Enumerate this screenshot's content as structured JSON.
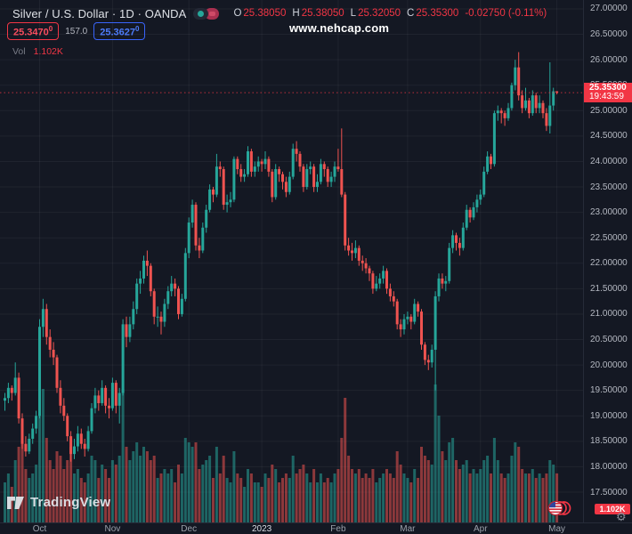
{
  "header": {
    "title": "Silver / U.S. Dollar · 1D · OANDA",
    "ohlc": {
      "o_label": "O",
      "o": "25.38050",
      "h_label": "H",
      "h": "25.38050",
      "l_label": "L",
      "l": "25.32050",
      "c_label": "C",
      "c": "25.35300",
      "change": "-0.02750 (-0.11%)"
    },
    "bid": {
      "main": "25.3470",
      "sup": "0"
    },
    "spread": "157.0",
    "ask": {
      "main": "25.3627",
      "sup": "0"
    },
    "vol_label": "Vol",
    "vol_value": "1.102K"
  },
  "watermark": "www.nehcap.com",
  "logo_text": "TradingView",
  "colors": {
    "background": "#141823",
    "up": "#26a69a",
    "down": "#ef5350",
    "up_volume": "rgba(38,166,154,0.55)",
    "down_volume": "rgba(239,83,80,0.55)",
    "accent_red": "#f23645",
    "accent_blue": "#2962ff",
    "grid": "rgba(255,255,255,0.05)",
    "axis_text": "#b4b8c1"
  },
  "chart_data": {
    "type": "candlestick",
    "symbol": "Silver / U.S. Dollar",
    "interval": "1D",
    "exchange": "OANDA",
    "title": "Silver / U.S. Dollar · 1D · OANDA",
    "last_price": "25.35300",
    "last_price_value": 25.353,
    "countdown": "19:43:59",
    "last_volume": "1.102K",
    "ylim": [
      16.93,
      27.17
    ],
    "xrange": [
      "Sep 2022",
      "May 2023"
    ],
    "grid": true,
    "price_axis_labels": [
      "27.00000",
      "26.50000",
      "26.00000",
      "25.50000",
      "25.00000",
      "24.50000",
      "24.00000",
      "23.50000",
      "23.00000",
      "22.50000",
      "22.00000",
      "21.50000",
      "21.00000",
      "20.50000",
      "20.00000",
      "19.50000",
      "19.00000",
      "18.50000",
      "18.00000",
      "17.50000"
    ],
    "time_axis": [
      {
        "label": "Oct",
        "index": 10,
        "major": false
      },
      {
        "label": "Nov",
        "index": 31,
        "major": false
      },
      {
        "label": "Dec",
        "index": 53,
        "major": false
      },
      {
        "label": "2023",
        "index": 74,
        "major": true
      },
      {
        "label": "Feb",
        "index": 96,
        "major": false
      },
      {
        "label": "Mar",
        "index": 116,
        "major": false
      },
      {
        "label": "Apr",
        "index": 137,
        "major": false
      },
      {
        "label": "May",
        "index": 159,
        "major": false
      }
    ],
    "volume_unit": "K",
    "candles": [
      [
        19.3,
        19.45,
        19.1,
        19.35,
        0.9
      ],
      [
        19.35,
        19.65,
        19.25,
        19.55,
        1.1
      ],
      [
        19.55,
        19.6,
        19.3,
        19.45,
        0.8
      ],
      [
        19.45,
        20.05,
        19.4,
        19.75,
        1.4
      ],
      [
        19.75,
        19.85,
        18.85,
        18.95,
        1.7
      ],
      [
        18.95,
        19.05,
        18.35,
        18.45,
        1.8
      ],
      [
        18.45,
        18.6,
        18.2,
        18.3,
        1.2
      ],
      [
        18.3,
        18.65,
        18.25,
        18.55,
        1.0
      ],
      [
        18.55,
        18.85,
        18.45,
        18.75,
        1.1
      ],
      [
        18.75,
        19.1,
        18.65,
        19.0,
        1.3
      ],
      [
        19.0,
        20.9,
        18.95,
        20.75,
        2.8
      ],
      [
        20.75,
        21.3,
        20.55,
        21.1,
        3.0
      ],
      [
        21.1,
        21.2,
        20.4,
        20.55,
        1.9
      ],
      [
        20.55,
        20.7,
        20.15,
        20.3,
        1.4
      ],
      [
        20.3,
        20.45,
        20.0,
        20.15,
        1.2
      ],
      [
        20.15,
        20.2,
        19.45,
        19.55,
        1.6
      ],
      [
        19.55,
        19.7,
        19.05,
        19.2,
        1.5
      ],
      [
        19.2,
        19.35,
        18.9,
        19.0,
        1.2
      ],
      [
        19.0,
        19.05,
        18.5,
        18.6,
        1.4
      ],
      [
        18.6,
        18.7,
        18.1,
        18.25,
        1.7
      ],
      [
        18.25,
        18.55,
        18.15,
        18.4,
        1.1
      ],
      [
        18.4,
        18.8,
        18.3,
        18.65,
        1.2
      ],
      [
        18.65,
        18.75,
        18.35,
        18.45,
        1.0
      ],
      [
        18.45,
        18.55,
        18.2,
        18.35,
        0.9
      ],
      [
        18.35,
        18.8,
        18.3,
        18.7,
        1.1
      ],
      [
        18.7,
        19.25,
        18.65,
        19.15,
        1.5
      ],
      [
        19.15,
        19.55,
        19.05,
        19.4,
        1.4
      ],
      [
        19.4,
        19.5,
        19.1,
        19.25,
        1.0
      ],
      [
        19.25,
        19.7,
        19.2,
        19.55,
        1.3
      ],
      [
        19.55,
        19.6,
        19.05,
        19.2,
        1.2
      ],
      [
        19.2,
        19.35,
        18.95,
        19.15,
        1.0
      ],
      [
        19.15,
        19.75,
        19.1,
        19.65,
        1.4
      ],
      [
        19.65,
        19.7,
        19.05,
        19.2,
        1.3
      ],
      [
        19.2,
        19.55,
        18.85,
        19.45,
        1.5
      ],
      [
        19.45,
        20.9,
        19.4,
        20.8,
        3.0
      ],
      [
        20.8,
        20.95,
        20.35,
        20.55,
        1.7
      ],
      [
        20.55,
        20.95,
        20.45,
        20.8,
        1.4
      ],
      [
        20.8,
        21.25,
        20.7,
        21.1,
        1.6
      ],
      [
        21.1,
        21.7,
        21.0,
        21.6,
        1.8
      ],
      [
        21.6,
        21.85,
        21.4,
        21.7,
        1.5
      ],
      [
        21.7,
        22.15,
        21.6,
        22.05,
        1.7
      ],
      [
        22.05,
        22.25,
        21.75,
        21.95,
        1.6
      ],
      [
        21.95,
        22.0,
        21.35,
        21.45,
        1.4
      ],
      [
        21.45,
        21.5,
        20.8,
        20.95,
        1.5
      ],
      [
        20.95,
        21.15,
        20.75,
        20.95,
        1.0
      ],
      [
        20.95,
        21.05,
        20.6,
        20.85,
        1.1
      ],
      [
        20.85,
        21.3,
        20.75,
        21.2,
        1.2
      ],
      [
        21.2,
        21.55,
        21.1,
        21.45,
        1.1
      ],
      [
        21.45,
        21.75,
        21.35,
        21.6,
        1.2
      ],
      [
        21.6,
        21.7,
        21.35,
        21.5,
        0.9
      ],
      [
        21.5,
        21.55,
        20.9,
        21.0,
        1.3
      ],
      [
        21.0,
        21.4,
        20.95,
        21.3,
        1.1
      ],
      [
        21.3,
        22.3,
        21.25,
        22.2,
        1.9
      ],
      [
        22.2,
        22.9,
        22.1,
        22.8,
        1.8
      ],
      [
        22.8,
        23.25,
        22.7,
        23.15,
        1.7
      ],
      [
        23.15,
        23.2,
        22.25,
        22.35,
        1.8
      ],
      [
        22.35,
        22.5,
        22.1,
        22.25,
        1.2
      ],
      [
        22.25,
        22.8,
        22.2,
        22.7,
        1.3
      ],
      [
        22.7,
        23.15,
        22.6,
        23.05,
        1.4
      ],
      [
        23.05,
        23.55,
        23.0,
        23.45,
        1.5
      ],
      [
        23.45,
        23.5,
        23.2,
        23.35,
        1.0
      ],
      [
        23.35,
        24.15,
        23.3,
        23.9,
        1.7
      ],
      [
        23.9,
        24.0,
        23.7,
        23.85,
        1.1
      ],
      [
        23.85,
        23.9,
        23.05,
        23.15,
        1.5
      ],
      [
        23.15,
        23.35,
        23.0,
        23.2,
        1.0
      ],
      [
        23.2,
        23.4,
        23.1,
        23.25,
        0.9
      ],
      [
        23.25,
        24.1,
        23.2,
        24.05,
        1.6
      ],
      [
        24.05,
        24.1,
        23.75,
        23.85,
        1.1
      ],
      [
        23.85,
        23.95,
        23.6,
        23.7,
        1.0
      ],
      [
        23.7,
        23.85,
        23.6,
        23.75,
        0.8
      ],
      [
        23.75,
        24.3,
        23.7,
        24.2,
        1.2
      ],
      [
        24.2,
        24.25,
        23.7,
        23.8,
        1.1
      ],
      [
        23.8,
        24.0,
        23.7,
        23.9,
        0.9
      ],
      [
        23.9,
        24.1,
        23.8,
        24.0,
        0.9
      ],
      [
        24.0,
        24.05,
        23.8,
        23.95,
        0.8
      ],
      [
        23.95,
        24.2,
        23.85,
        24.05,
        1.1
      ],
      [
        24.05,
        24.1,
        23.7,
        23.8,
        1.0
      ],
      [
        23.8,
        23.85,
        23.2,
        23.3,
        1.3
      ],
      [
        23.3,
        23.95,
        23.25,
        23.85,
        1.2
      ],
      [
        23.85,
        23.9,
        23.6,
        23.75,
        0.9
      ],
      [
        23.75,
        23.8,
        23.45,
        23.6,
        1.0
      ],
      [
        23.6,
        23.7,
        23.3,
        23.4,
        1.1
      ],
      [
        23.4,
        23.8,
        23.35,
        23.7,
        1.0
      ],
      [
        23.7,
        24.35,
        23.65,
        24.25,
        1.5
      ],
      [
        24.25,
        24.4,
        24.0,
        24.15,
        1.1
      ],
      [
        24.15,
        24.2,
        23.8,
        23.9,
        1.2
      ],
      [
        23.9,
        23.95,
        23.4,
        23.5,
        1.3
      ],
      [
        23.5,
        23.95,
        23.45,
        23.85,
        1.1
      ],
      [
        23.85,
        24.0,
        23.75,
        23.9,
        0.9
      ],
      [
        23.9,
        23.95,
        23.4,
        23.5,
        1.2
      ],
      [
        23.5,
        23.75,
        23.4,
        23.6,
        0.9
      ],
      [
        23.6,
        24.05,
        23.55,
        23.95,
        1.1
      ],
      [
        23.95,
        24.0,
        23.7,
        23.85,
        0.9
      ],
      [
        23.85,
        23.9,
        23.5,
        23.6,
        1.0
      ],
      [
        23.6,
        23.8,
        23.5,
        23.7,
        0.9
      ],
      [
        23.7,
        24.0,
        23.6,
        23.9,
        1.1
      ],
      [
        23.9,
        24.25,
        23.8,
        23.85,
        1.2
      ],
      [
        23.85,
        24.65,
        23.3,
        23.35,
        1.9
      ],
      [
        23.35,
        23.4,
        22.25,
        22.35,
        2.8
      ],
      [
        22.35,
        22.5,
        22.15,
        22.25,
        1.5
      ],
      [
        22.25,
        22.4,
        22.05,
        22.2,
        1.2
      ],
      [
        22.2,
        22.45,
        22.1,
        22.3,
        1.1
      ],
      [
        22.3,
        22.35,
        21.95,
        22.05,
        1.2
      ],
      [
        22.05,
        22.15,
        21.85,
        22.0,
        1.0
      ],
      [
        22.0,
        22.1,
        21.8,
        21.9,
        1.1
      ],
      [
        21.9,
        21.95,
        21.65,
        21.8,
        1.0
      ],
      [
        21.8,
        21.85,
        21.4,
        21.5,
        1.2
      ],
      [
        21.5,
        21.75,
        21.45,
        21.6,
        0.9
      ],
      [
        21.6,
        21.8,
        21.5,
        21.7,
        1.0
      ],
      [
        21.7,
        21.95,
        21.6,
        21.85,
        1.1
      ],
      [
        21.85,
        21.9,
        21.4,
        21.5,
        1.2
      ],
      [
        21.5,
        21.6,
        21.25,
        21.35,
        1.1
      ],
      [
        21.35,
        21.45,
        21.15,
        21.25,
        1.0
      ],
      [
        21.25,
        21.3,
        20.7,
        20.8,
        1.6
      ],
      [
        20.8,
        20.9,
        20.55,
        20.7,
        1.3
      ],
      [
        20.7,
        21.0,
        20.6,
        20.9,
        1.1
      ],
      [
        20.9,
        21.05,
        20.8,
        20.95,
        1.0
      ],
      [
        20.95,
        21.0,
        20.7,
        20.85,
        0.9
      ],
      [
        20.85,
        21.3,
        20.8,
        21.2,
        1.2
      ],
      [
        21.2,
        21.25,
        20.95,
        21.05,
        1.0
      ],
      [
        21.05,
        21.1,
        20.3,
        20.4,
        1.7
      ],
      [
        20.4,
        20.45,
        20.0,
        20.1,
        1.5
      ],
      [
        20.1,
        20.2,
        19.9,
        20.05,
        1.4
      ],
      [
        20.05,
        20.4,
        19.95,
        20.3,
        1.3
      ],
      [
        20.3,
        21.45,
        19.5,
        21.35,
        3.1
      ],
      [
        21.35,
        21.8,
        21.25,
        21.7,
        2.4
      ],
      [
        21.7,
        21.8,
        21.5,
        21.6,
        1.6
      ],
      [
        21.6,
        21.75,
        21.45,
        21.65,
        1.4
      ],
      [
        21.65,
        22.4,
        21.6,
        22.3,
        1.8
      ],
      [
        22.3,
        22.65,
        22.2,
        22.55,
        1.9
      ],
      [
        22.55,
        22.6,
        22.25,
        22.4,
        1.4
      ],
      [
        22.4,
        22.5,
        22.15,
        22.3,
        1.2
      ],
      [
        22.3,
        22.8,
        22.25,
        22.7,
        1.3
      ],
      [
        22.7,
        23.15,
        22.65,
        23.05,
        1.4
      ],
      [
        23.05,
        23.1,
        22.8,
        22.9,
        1.1
      ],
      [
        22.9,
        23.2,
        22.85,
        23.1,
        1.2
      ],
      [
        23.1,
        23.35,
        23.0,
        23.25,
        1.1
      ],
      [
        23.25,
        23.45,
        23.15,
        23.35,
        1.2
      ],
      [
        23.35,
        23.9,
        23.3,
        23.8,
        1.4
      ],
      [
        23.8,
        24.2,
        23.75,
        24.1,
        1.5
      ],
      [
        24.1,
        24.15,
        23.85,
        23.95,
        1.1
      ],
      [
        23.95,
        25.0,
        23.9,
        24.95,
        1.9
      ],
      [
        24.95,
        25.1,
        24.8,
        25.0,
        1.4
      ],
      [
        25.0,
        25.05,
        24.75,
        24.95,
        1.1
      ],
      [
        24.95,
        25.0,
        24.7,
        24.85,
        1.0
      ],
      [
        24.85,
        25.15,
        24.8,
        25.05,
        1.1
      ],
      [
        25.05,
        25.55,
        25.0,
        25.5,
        1.5
      ],
      [
        25.5,
        26.0,
        25.4,
        25.85,
        1.8
      ],
      [
        25.85,
        26.15,
        25.2,
        25.3,
        1.7
      ],
      [
        25.3,
        25.4,
        24.95,
        25.05,
        1.2
      ],
      [
        25.05,
        25.45,
        25.0,
        25.2,
        1.1
      ],
      [
        25.2,
        25.25,
        24.85,
        24.95,
        1.1
      ],
      [
        24.95,
        25.4,
        24.9,
        25.3,
        1.2
      ],
      [
        25.3,
        25.35,
        24.95,
        25.05,
        1.0
      ],
      [
        25.05,
        25.3,
        24.95,
        25.15,
        1.1
      ],
      [
        25.15,
        25.2,
        24.85,
        24.95,
        1.0
      ],
      [
        24.95,
        25.05,
        24.6,
        24.7,
        1.1
      ],
      [
        24.7,
        25.95,
        24.55,
        25.1,
        1.4
      ],
      [
        25.1,
        25.45,
        25.0,
        25.38,
        1.3
      ],
      [
        25.3805,
        25.3805,
        25.3205,
        25.353,
        1.102
      ]
    ]
  }
}
